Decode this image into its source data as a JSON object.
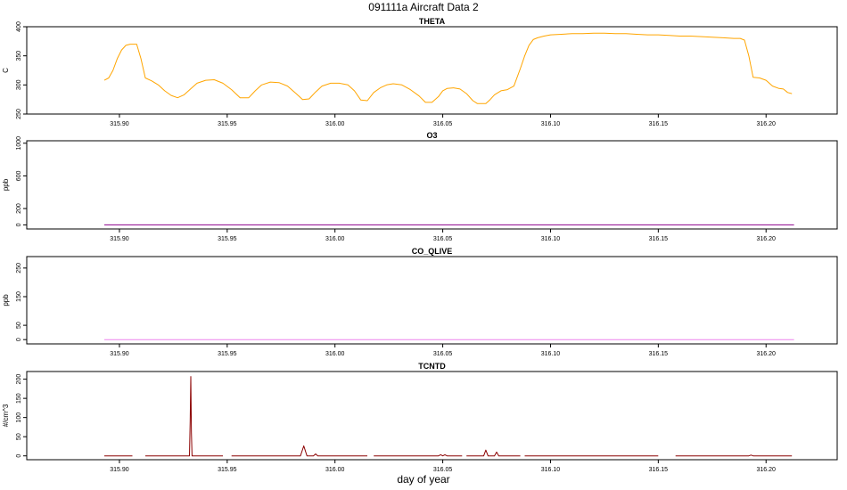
{
  "title": "091111a   Aircraft Data 2",
  "xlabel": "day of year",
  "chart_data": [
    {
      "type": "line",
      "title": "THETA",
      "ylabel": "C",
      "color": "#FFA500",
      "xlim": [
        315.857,
        316.233
      ],
      "ylim": [
        250,
        400
      ],
      "xticks": [
        315.9,
        315.95,
        316.0,
        316.05,
        316.1,
        316.15,
        316.2
      ],
      "xtick_labels": [
        "315.90",
        "315.95",
        "316.00",
        "316.05",
        "316.10",
        "316.15",
        "316.20"
      ],
      "yticks": [
        250,
        300,
        350,
        400
      ],
      "ytick_labels": [
        "250",
        "300",
        "350",
        "400"
      ],
      "series": [
        {
          "x": [
            315.893,
            315.895,
            315.897,
            315.899,
            315.901,
            315.903,
            315.905,
            315.908,
            315.91,
            315.912,
            315.915,
            315.918,
            315.921,
            315.924,
            315.927,
            315.93,
            315.933,
            315.936,
            315.94,
            315.944,
            315.948,
            315.952,
            315.956,
            315.96,
            315.963,
            315.966,
            315.97,
            315.974,
            315.978,
            315.982,
            315.985,
            315.988,
            315.991,
            315.994,
            315.998,
            316.002,
            316.006,
            316.009,
            316.012,
            316.015,
            316.018,
            316.021,
            316.024,
            316.027,
            316.031,
            316.035,
            316.039,
            316.042,
            316.045,
            316.048,
            316.05,
            316.052,
            316.055,
            316.058,
            316.061,
            316.064,
            316.066,
            316.068,
            316.07,
            316.072,
            316.074,
            316.077,
            316.08,
            316.083,
            316.086,
            316.088,
            316.09,
            316.092,
            316.094,
            316.097,
            316.1,
            316.105,
            316.11,
            316.115,
            316.12,
            316.125,
            316.13,
            316.135,
            316.14,
            316.145,
            316.15,
            316.155,
            316.16,
            316.165,
            316.17,
            316.175,
            316.18,
            316.185,
            316.188,
            316.19,
            316.192,
            316.194,
            316.197,
            316.2,
            316.203,
            316.206,
            316.208,
            316.21,
            316.212
          ],
          "y": [
            308,
            312,
            325,
            345,
            360,
            368,
            370,
            370,
            345,
            312,
            307,
            300,
            290,
            282,
            278,
            283,
            293,
            303,
            308,
            309,
            303,
            292,
            278,
            278,
            290,
            300,
            305,
            304,
            298,
            285,
            275,
            276,
            288,
            298,
            303,
            303,
            300,
            290,
            274,
            273,
            287,
            295,
            300,
            302,
            300,
            292,
            281,
            270,
            270,
            280,
            290,
            294,
            295,
            293,
            285,
            273,
            268,
            268,
            268,
            275,
            283,
            290,
            292,
            298,
            328,
            350,
            368,
            378,
            381,
            384,
            386,
            387,
            388,
            388,
            389,
            389,
            388,
            388,
            387,
            386,
            386,
            385,
            384,
            384,
            383,
            382,
            381,
            380,
            380,
            377,
            350,
            313,
            312,
            308,
            298,
            294,
            293,
            287,
            285
          ]
        }
      ]
    },
    {
      "type": "line",
      "title": "O3",
      "ylabel": "ppb",
      "color": "#8B008B",
      "xlim": [
        315.857,
        316.233
      ],
      "ylim": [
        -50,
        1030
      ],
      "xticks": [
        315.9,
        315.95,
        316.0,
        316.05,
        316.1,
        316.15,
        316.2
      ],
      "xtick_labels": [
        "315.90",
        "315.95",
        "316.00",
        "316.05",
        "316.10",
        "316.15",
        "316.20"
      ],
      "yticks": [
        0,
        200,
        600,
        1000
      ],
      "ytick_labels": [
        "0",
        "200",
        "600",
        "1000"
      ],
      "series": [
        {
          "x": [
            315.893,
            316.213
          ],
          "y": [
            0,
            0
          ]
        }
      ]
    },
    {
      "type": "line",
      "title": "CO_QLIVE",
      "ylabel": "ppb",
      "color": "#EE82EE",
      "xlim": [
        315.857,
        316.233
      ],
      "ylim": [
        -15,
        290
      ],
      "xticks": [
        315.9,
        315.95,
        316.0,
        316.05,
        316.1,
        316.15,
        316.2
      ],
      "xtick_labels": [
        "315.90",
        "315.95",
        "316.00",
        "316.05",
        "316.10",
        "316.15",
        "316.20"
      ],
      "yticks": [
        0,
        50,
        150,
        250
      ],
      "ytick_labels": [
        "0",
        "50",
        "150",
        "250"
      ],
      "series": [
        {
          "x": [
            315.893,
            316.213
          ],
          "y": [
            0,
            0
          ]
        }
      ]
    },
    {
      "type": "line",
      "title": "TCNTD",
      "ylabel": "#/cm^3",
      "color": "#8B0000",
      "xlim": [
        315.857,
        316.233
      ],
      "ylim": [
        -10,
        220
      ],
      "xticks": [
        315.9,
        315.95,
        316.0,
        316.05,
        316.1,
        316.15,
        316.2
      ],
      "xtick_labels": [
        "315.90",
        "315.95",
        "316.00",
        "316.05",
        "316.10",
        "316.15",
        "316.20"
      ],
      "yticks": [
        0,
        50,
        100,
        150,
        200
      ],
      "ytick_labels": [
        "0",
        "50",
        "100",
        "150",
        "200"
      ],
      "segments": [
        {
          "x": [
            315.893,
            315.906
          ],
          "y": [
            0,
            0
          ]
        },
        {
          "x": [
            315.912,
            315.9325,
            315.9328,
            315.9331,
            315.9334,
            315.9337,
            315.948
          ],
          "y": [
            0,
            0,
            90,
            207,
            60,
            0,
            0
          ]
        },
        {
          "x": [
            315.952,
            315.984,
            315.9855,
            315.987,
            315.99,
            315.991,
            315.992,
            316.015
          ],
          "y": [
            0,
            0,
            26,
            0,
            0,
            5,
            0,
            0
          ]
        },
        {
          "x": [
            316.018,
            316.048,
            316.049,
            316.05,
            316.051,
            316.052,
            316.059
          ],
          "y": [
            0,
            0,
            3,
            0,
            3,
            0,
            0
          ]
        },
        {
          "x": [
            316.061,
            316.069,
            316.07,
            316.071,
            316.074,
            316.075,
            316.076,
            316.086
          ],
          "y": [
            0,
            0,
            15,
            0,
            0,
            10,
            0,
            0
          ]
        },
        {
          "x": [
            316.088,
            316.15
          ],
          "y": [
            0,
            0
          ]
        },
        {
          "x": [
            316.158,
            316.192,
            316.193,
            316.194,
            316.212
          ],
          "y": [
            0,
            0,
            2,
            0,
            0
          ]
        }
      ]
    }
  ]
}
